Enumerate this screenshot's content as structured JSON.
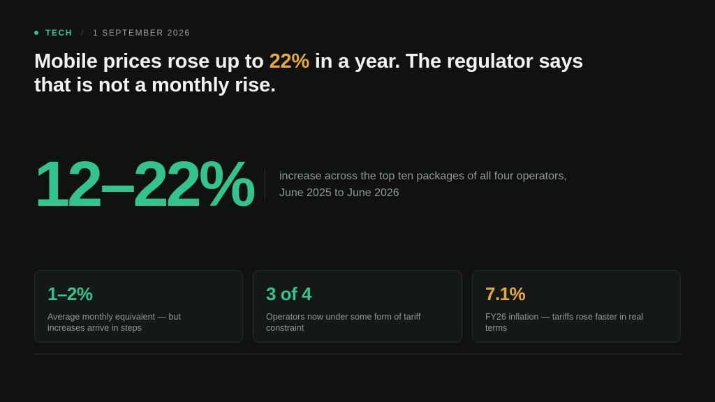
{
  "meta": {
    "category": "TECH",
    "separator": "/",
    "date": "1 SEPTEMBER 2026"
  },
  "headline": {
    "before": "Mobile prices rose up to ",
    "highlight": "22%",
    "after": " in a year. The regulator says that is not a monthly rise."
  },
  "hero": {
    "value": "12–22%",
    "description": "increase across the top ten packages of all four operators, June 2025 to June 2026"
  },
  "cards": [
    {
      "value": "1–2%",
      "description": "Average monthly equivalent — but increases arrive in steps"
    },
    {
      "value": "3 of 4",
      "description": "Operators now under some form of tariff constraint"
    },
    {
      "value": "7.1%",
      "description": "FY26 inflation — tariffs rose faster in real terms"
    }
  ],
  "colors": {
    "background": "#0f1211",
    "accent_green": "#33c48d",
    "accent_amber": "#e8a93a"
  }
}
